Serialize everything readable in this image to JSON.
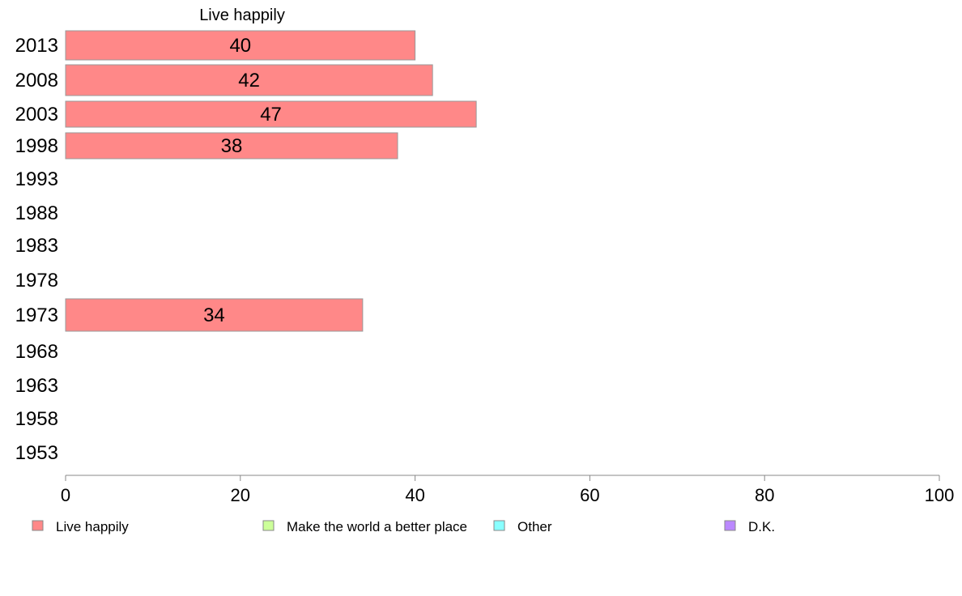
{
  "chart_data": {
    "type": "bar",
    "orientation": "horizontal",
    "stacked": true,
    "title": "Live happily",
    "categories": [
      "2013",
      "2008",
      "2003",
      "1998",
      "1993",
      "1988",
      "1983",
      "1978",
      "1973",
      "1968",
      "1963",
      "1958",
      "1953"
    ],
    "series": [
      {
        "name": "Live happily",
        "color": "#ff8888",
        "values": [
          40,
          42,
          47,
          38,
          null,
          null,
          null,
          null,
          34,
          null,
          null,
          null,
          null
        ]
      },
      {
        "name": "Make the world a better place",
        "color": "#ccff99",
        "values": [
          null,
          null,
          null,
          null,
          null,
          null,
          null,
          null,
          null,
          null,
          null,
          null,
          null
        ]
      },
      {
        "name": "Other",
        "color": "#88ffff",
        "values": [
          null,
          null,
          null,
          null,
          null,
          null,
          null,
          null,
          null,
          null,
          null,
          null,
          null
        ]
      },
      {
        "name": "D.K.",
        "color": "#bb88ff",
        "values": [
          null,
          null,
          null,
          null,
          null,
          null,
          null,
          null,
          null,
          null,
          null,
          null,
          null
        ]
      }
    ],
    "xlim": [
      0,
      100
    ],
    "xticks": [
      0,
      20,
      40,
      60,
      80,
      100
    ],
    "grid": false,
    "legend_position": "bottom"
  }
}
